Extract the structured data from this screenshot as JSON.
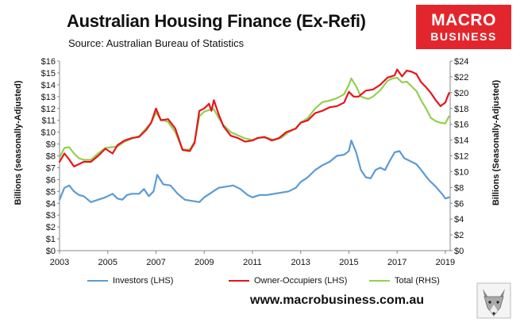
{
  "header": {
    "title": "Australian Housing Finance (Ex-Refi)",
    "subtitle": "Source: Australian Bureau of Statistics",
    "logo_line1": "MACRO",
    "logo_line2": "BUSINESS"
  },
  "footer": {
    "website": "www.macrobusiness.com.au"
  },
  "colors": {
    "investors": "#5b9bd5",
    "owner_occupiers": "#e8141c",
    "total": "#92d050",
    "logo": "#e3262d"
  },
  "chart_data": {
    "type": "line",
    "xlabel": "",
    "ylabel_left": "Billions (seasonally-Adjusted)",
    "ylabel_right": "Billions (Seasonally-Adjusted)",
    "xlim": [
      2003,
      2019.2
    ],
    "ylim_left": [
      0,
      16
    ],
    "ylim_right": [
      0,
      24
    ],
    "x_ticks": [
      "2003",
      "2005",
      "2007",
      "2009",
      "2011",
      "2013",
      "2015",
      "2017",
      "2019"
    ],
    "y_ticks_left": [
      "$0",
      "$1",
      "$2",
      "$3",
      "$4",
      "$5",
      "$6",
      "$7",
      "$8",
      "$9",
      "$10",
      "$11",
      "$12",
      "$13",
      "$14",
      "$15",
      "$16"
    ],
    "y_ticks_right": [
      "$0",
      "$2",
      "$4",
      "$6",
      "$8",
      "$10",
      "$12",
      "$14",
      "$16",
      "$18",
      "$20",
      "$22",
      "$24"
    ],
    "legend_position": "bottom",
    "grid": false,
    "series": [
      {
        "name": "Investors (LHS)",
        "axis": "left",
        "color": "#5b9bd5",
        "points": [
          [
            2003,
            4.3
          ],
          [
            2003.2,
            5.3
          ],
          [
            2003.4,
            5.5
          ],
          [
            2003.6,
            5.0
          ],
          [
            2003.8,
            4.7
          ],
          [
            2004,
            4.6
          ],
          [
            2004.3,
            4.1
          ],
          [
            2004.6,
            4.3
          ],
          [
            2004.9,
            4.5
          ],
          [
            2005.2,
            4.8
          ],
          [
            2005.4,
            4.4
          ],
          [
            2005.6,
            4.3
          ],
          [
            2005.8,
            4.7
          ],
          [
            2006,
            4.8
          ],
          [
            2006.3,
            4.8
          ],
          [
            2006.5,
            5.2
          ],
          [
            2006.7,
            4.6
          ],
          [
            2006.9,
            5.0
          ],
          [
            2007.05,
            6.4
          ],
          [
            2007.3,
            5.6
          ],
          [
            2007.6,
            5.5
          ],
          [
            2007.9,
            4.8
          ],
          [
            2008.2,
            4.3
          ],
          [
            2008.5,
            4.2
          ],
          [
            2008.8,
            4.1
          ],
          [
            2009,
            4.5
          ],
          [
            2009.3,
            4.9
          ],
          [
            2009.6,
            5.3
          ],
          [
            2009.9,
            5.4
          ],
          [
            2010.2,
            5.5
          ],
          [
            2010.5,
            5.2
          ],
          [
            2010.8,
            4.7
          ],
          [
            2011,
            4.5
          ],
          [
            2011.3,
            4.7
          ],
          [
            2011.6,
            4.7
          ],
          [
            2011.9,
            4.8
          ],
          [
            2012.2,
            4.9
          ],
          [
            2012.5,
            5.0
          ],
          [
            2012.8,
            5.3
          ],
          [
            2013,
            5.8
          ],
          [
            2013.3,
            6.2
          ],
          [
            2013.6,
            6.8
          ],
          [
            2013.9,
            7.2
          ],
          [
            2014.2,
            7.5
          ],
          [
            2014.5,
            8.0
          ],
          [
            2014.8,
            8.1
          ],
          [
            2015,
            8.4
          ],
          [
            2015.1,
            9.3
          ],
          [
            2015.3,
            8.3
          ],
          [
            2015.5,
            6.8
          ],
          [
            2015.7,
            6.2
          ],
          [
            2015.9,
            6.1
          ],
          [
            2016.1,
            6.8
          ],
          [
            2016.3,
            7.0
          ],
          [
            2016.5,
            6.8
          ],
          [
            2016.7,
            7.6
          ],
          [
            2016.9,
            8.3
          ],
          [
            2017.1,
            8.4
          ],
          [
            2017.3,
            7.8
          ],
          [
            2017.5,
            7.6
          ],
          [
            2017.8,
            7.3
          ],
          [
            2018,
            6.8
          ],
          [
            2018.3,
            6.0
          ],
          [
            2018.6,
            5.4
          ],
          [
            2018.9,
            4.7
          ],
          [
            2019,
            4.4
          ],
          [
            2019.15,
            4.5
          ]
        ]
      },
      {
        "name": "Owner-Occupiers (LHS)",
        "axis": "left",
        "color": "#e8141c",
        "points": [
          [
            2003,
            7.5
          ],
          [
            2003.2,
            8.2
          ],
          [
            2003.4,
            7.7
          ],
          [
            2003.6,
            7.1
          ],
          [
            2003.8,
            7.3
          ],
          [
            2004,
            7.5
          ],
          [
            2004.3,
            7.5
          ],
          [
            2004.6,
            8.0
          ],
          [
            2004.9,
            8.6
          ],
          [
            2005.2,
            8.2
          ],
          [
            2005.4,
            8.9
          ],
          [
            2005.7,
            9.3
          ],
          [
            2006,
            9.5
          ],
          [
            2006.3,
            9.6
          ],
          [
            2006.6,
            10.2
          ],
          [
            2006.8,
            10.8
          ],
          [
            2007,
            12.0
          ],
          [
            2007.2,
            11.0
          ],
          [
            2007.5,
            11.1
          ],
          [
            2007.8,
            10.3
          ],
          [
            2008.1,
            8.5
          ],
          [
            2008.4,
            8.4
          ],
          [
            2008.6,
            9.1
          ],
          [
            2008.8,
            11.8
          ],
          [
            2009,
            12.0
          ],
          [
            2009.2,
            12.4
          ],
          [
            2009.3,
            11.8
          ],
          [
            2009.4,
            12.7
          ],
          [
            2009.6,
            11.5
          ],
          [
            2009.8,
            10.5
          ],
          [
            2010.1,
            9.7
          ],
          [
            2010.4,
            9.5
          ],
          [
            2010.7,
            9.2
          ],
          [
            2011,
            9.3
          ],
          [
            2011.2,
            9.5
          ],
          [
            2011.5,
            9.6
          ],
          [
            2011.8,
            9.3
          ],
          [
            2012.1,
            9.5
          ],
          [
            2012.4,
            10.0
          ],
          [
            2012.8,
            10.3
          ],
          [
            2013,
            10.8
          ],
          [
            2013.3,
            11.0
          ],
          [
            2013.6,
            11.6
          ],
          [
            2013.9,
            11.8
          ],
          [
            2014.2,
            12.1
          ],
          [
            2014.5,
            12.2
          ],
          [
            2014.8,
            12.5
          ],
          [
            2015,
            13.4
          ],
          [
            2015.2,
            13.0
          ],
          [
            2015.4,
            13.0
          ],
          [
            2015.7,
            13.5
          ],
          [
            2016,
            13.6
          ],
          [
            2016.3,
            14.0
          ],
          [
            2016.6,
            14.6
          ],
          [
            2016.9,
            14.8
          ],
          [
            2017,
            15.3
          ],
          [
            2017.2,
            14.7
          ],
          [
            2017.4,
            15.2
          ],
          [
            2017.6,
            15.1
          ],
          [
            2017.8,
            14.9
          ],
          [
            2018,
            14.2
          ],
          [
            2018.2,
            13.8
          ],
          [
            2018.4,
            13.3
          ],
          [
            2018.6,
            12.7
          ],
          [
            2018.8,
            12.2
          ],
          [
            2019,
            12.5
          ],
          [
            2019.15,
            13.3
          ]
        ]
      },
      {
        "name": "Total (RHS)",
        "axis": "right",
        "color": "#92d050",
        "points": [
          [
            2003,
            11.8
          ],
          [
            2003.2,
            13.0
          ],
          [
            2003.4,
            13.1
          ],
          [
            2003.6,
            12.3
          ],
          [
            2003.8,
            11.7
          ],
          [
            2004,
            11.5
          ],
          [
            2004.3,
            11.5
          ],
          [
            2004.6,
            12.3
          ],
          [
            2004.9,
            13.0
          ],
          [
            2005.2,
            13.1
          ],
          [
            2005.4,
            13.2
          ],
          [
            2005.7,
            13.8
          ],
          [
            2006,
            14.2
          ],
          [
            2006.3,
            14.5
          ],
          [
            2006.6,
            15.5
          ],
          [
            2006.8,
            16.2
          ],
          [
            2007,
            17.5
          ],
          [
            2007.2,
            16.6
          ],
          [
            2007.5,
            16.3
          ],
          [
            2007.8,
            15.0
          ],
          [
            2008.1,
            12.8
          ],
          [
            2008.4,
            12.8
          ],
          [
            2008.6,
            13.8
          ],
          [
            2008.8,
            17.0
          ],
          [
            2009,
            17.6
          ],
          [
            2009.2,
            17.8
          ],
          [
            2009.4,
            17.9
          ],
          [
            2009.6,
            16.8
          ],
          [
            2009.8,
            15.9
          ],
          [
            2010.1,
            15.0
          ],
          [
            2010.4,
            14.6
          ],
          [
            2010.7,
            14.2
          ],
          [
            2011,
            14.0
          ],
          [
            2011.3,
            14.3
          ],
          [
            2011.6,
            14.3
          ],
          [
            2011.9,
            14.0
          ],
          [
            2012.2,
            14.3
          ],
          [
            2012.5,
            15.0
          ],
          [
            2012.8,
            15.5
          ],
          [
            2013,
            16.2
          ],
          [
            2013.3,
            16.8
          ],
          [
            2013.6,
            18.0
          ],
          [
            2013.9,
            18.8
          ],
          [
            2014.2,
            19.0
          ],
          [
            2014.5,
            19.3
          ],
          [
            2014.8,
            19.8
          ],
          [
            2015,
            21.0
          ],
          [
            2015.1,
            21.8
          ],
          [
            2015.3,
            20.8
          ],
          [
            2015.5,
            19.5
          ],
          [
            2015.8,
            19.2
          ],
          [
            2016,
            19.5
          ],
          [
            2016.3,
            20.3
          ],
          [
            2016.6,
            21.5
          ],
          [
            2016.8,
            21.8
          ],
          [
            2017,
            21.9
          ],
          [
            2017.2,
            21.3
          ],
          [
            2017.4,
            21.4
          ],
          [
            2017.6,
            20.8
          ],
          [
            2017.8,
            20.2
          ],
          [
            2018,
            19.0
          ],
          [
            2018.2,
            18.0
          ],
          [
            2018.4,
            16.8
          ],
          [
            2018.6,
            16.4
          ],
          [
            2018.8,
            16.2
          ],
          [
            2019,
            16.1
          ],
          [
            2019.15,
            17.0
          ]
        ]
      }
    ]
  }
}
